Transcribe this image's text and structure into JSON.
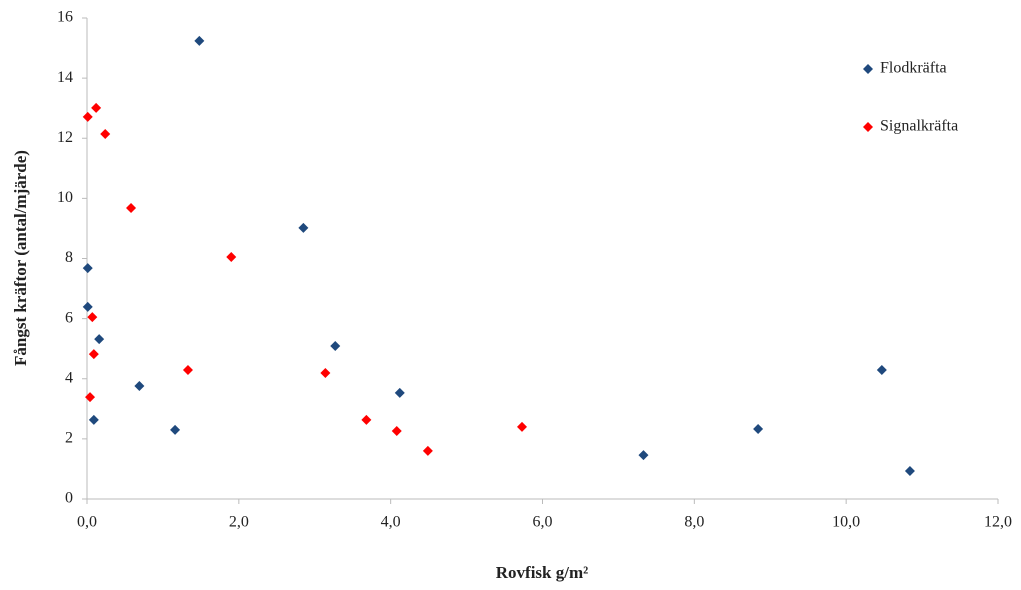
{
  "chart_data": {
    "type": "scatter",
    "xlabel": "Rovfisk g/m²",
    "ylabel": "Fångst kräftor (antal/mjärde)",
    "xlim": [
      0,
      12
    ],
    "xticks": [
      {
        "value": 0,
        "label": "0,0"
      },
      {
        "value": 2,
        "label": "2,0"
      },
      {
        "value": 4,
        "label": "4,0"
      },
      {
        "value": 6,
        "label": "6,0"
      },
      {
        "value": 8,
        "label": "8,0"
      },
      {
        "value": 10,
        "label": "10,0"
      },
      {
        "value": 12,
        "label": "12,0"
      }
    ],
    "ylim": [
      0,
      16
    ],
    "yticks": [
      0,
      2,
      4,
      6,
      8,
      10,
      12,
      14,
      16
    ],
    "grid": false,
    "legend": "upper right",
    "series": [
      {
        "name": "Flodkräfta",
        "color": "#1f497d",
        "x": [
          1.48,
          2.85,
          0.01,
          0.01,
          0.16,
          3.27,
          0.69,
          4.12,
          0.09,
          1.16,
          10.47,
          8.84,
          7.33,
          10.84
        ],
        "values": [
          15.24,
          9.02,
          7.68,
          6.39,
          5.32,
          5.09,
          3.76,
          3.53,
          2.63,
          2.3,
          4.29,
          2.33,
          1.46,
          0.93
        ]
      },
      {
        "name": "Signalkräfta",
        "color": "#ff0000",
        "x": [
          0.01,
          0.12,
          0.24,
          0.58,
          1.9,
          0.07,
          0.09,
          1.33,
          0.04,
          3.14,
          3.68,
          4.08,
          4.49,
          5.73
        ],
        "values": [
          12.71,
          13.01,
          12.14,
          9.68,
          8.05,
          6.05,
          4.82,
          4.29,
          3.39,
          4.19,
          2.63,
          2.26,
          1.6,
          2.4
        ]
      }
    ]
  }
}
